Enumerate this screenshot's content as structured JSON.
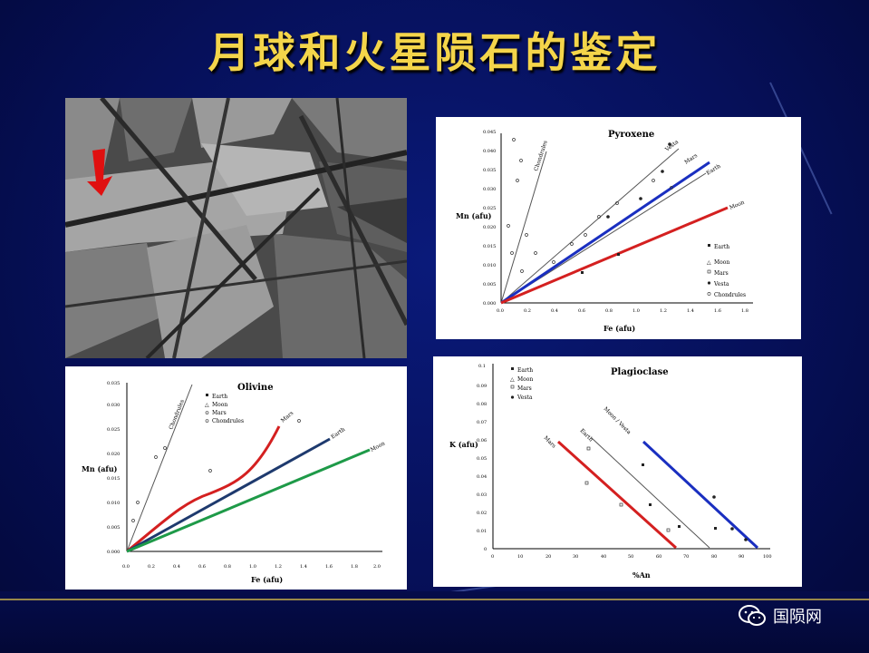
{
  "title": "月球和火星陨石的鉴定",
  "brand": {
    "name": "国陨网",
    "icon": "wechat-icon"
  },
  "panels": {
    "micrograph": {
      "arrow_color": "#e01010"
    },
    "pyroxene": {
      "title": "Pyroxene",
      "ylabel": "Mn (afu)",
      "xlabel": "Fe (afu)",
      "yticks": [
        "0.000",
        "0.005",
        "0.010",
        "0.015",
        "0.020",
        "0.025",
        "0.030",
        "0.035",
        "0.040",
        "0.045"
      ],
      "xticks": [
        "0.0",
        "0.2",
        "0.4",
        "0.6",
        "0.8",
        "1.0",
        "1.2",
        "1.4",
        "1.6",
        "1.8"
      ],
      "line_labels": [
        "Chondrules",
        "Vesta",
        "Mars",
        "Earth",
        "Moon"
      ],
      "legend": [
        "Earth",
        "Moon",
        "Mars",
        "Vesta",
        "Chondrules"
      ]
    },
    "olivine": {
      "title": "Olivine",
      "ylabel": "Mn (afu)",
      "xlabel": "Fe (afu)",
      "yticks": [
        "0.000",
        "0.005",
        "0.010",
        "0.015",
        "0.020",
        "0.025",
        "0.030",
        "0.035"
      ],
      "xticks": [
        "0.0",
        "0.2",
        "0.4",
        "0.6",
        "0.8",
        "1.0",
        "1.2",
        "1.4",
        "1.6",
        "1.8",
        "2.0"
      ],
      "line_labels": [
        "Chondrules",
        "Mars",
        "Earth",
        "Moon"
      ],
      "legend": [
        "Earth",
        "Moon",
        "Mars",
        "Chondrules"
      ]
    },
    "plagioclase": {
      "title": "Plagioclase",
      "ylabel": "K (afu)",
      "xlabel": "%An",
      "yticks": [
        "0",
        "0.01",
        "0.02",
        "0.03",
        "0.04",
        "0.05",
        "0.06",
        "0.07",
        "0.08",
        "0.09",
        "0.1"
      ],
      "xticks": [
        "0",
        "10",
        "20",
        "30",
        "40",
        "50",
        "60",
        "70",
        "80",
        "90",
        "100"
      ],
      "line_labels": [
        "Mars",
        "Earth",
        "Moon / Vesta"
      ],
      "legend": [
        "Earth",
        "Moon",
        "Mars",
        "Vesta"
      ]
    }
  },
  "colors": {
    "title": "#f4d54a",
    "red": "#d42020",
    "blue": "#1a2fc0",
    "navy": "#1e3a6e",
    "green": "#1e9a48",
    "gray": "#555555"
  }
}
